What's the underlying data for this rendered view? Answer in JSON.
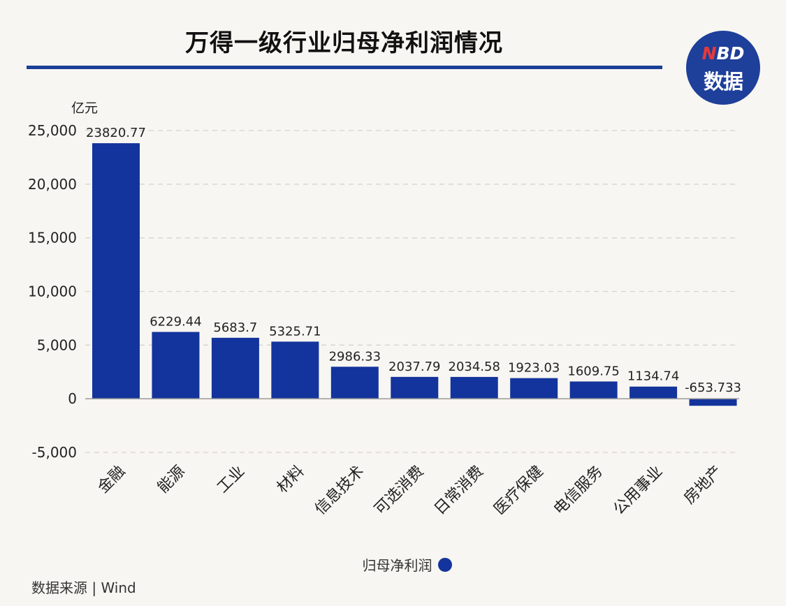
{
  "header": {
    "title": "万得一级行业归母净利润情况"
  },
  "logo": {
    "top_n": "N",
    "top_rest": "BD",
    "bottom": "数据"
  },
  "colors": {
    "bar": "#13349c",
    "accent": "#1a3f96",
    "grid": "#d6d4cf",
    "background": "#f8f6f2"
  },
  "chart_data": {
    "type": "bar",
    "title": "万得一级行业归母净利润情况",
    "ylabel": "亿元",
    "xlabel": "",
    "ylim": [
      -5000,
      25000
    ],
    "yticks": [
      -5000,
      0,
      5000,
      10000,
      15000,
      20000,
      25000
    ],
    "ytick_labels": [
      "-5,000",
      "0",
      "5,000",
      "10,000",
      "15,000",
      "20,000",
      "25,000"
    ],
    "grid": true,
    "legend_position": "bottom",
    "categories": [
      "金融",
      "能源",
      "工业",
      "材料",
      "信息技术",
      "可选消费",
      "日常消费",
      "医疗保健",
      "电信服务",
      "公用事业",
      "房地产"
    ],
    "series": [
      {
        "name": "归母净利润",
        "values": [
          23820.77,
          6229.44,
          5683.7,
          5325.71,
          2986.33,
          2037.79,
          2034.58,
          1923.03,
          1609.75,
          1134.74,
          -653.733
        ],
        "labels": [
          "23820.77",
          "6229.44",
          "5683.7",
          "5325.71",
          "2986.33",
          "2037.79",
          "2034.58",
          "1923.03",
          "1609.75",
          "1134.74",
          "-653.733"
        ]
      }
    ]
  },
  "footer": {
    "source": "数据来源 | Wind"
  }
}
